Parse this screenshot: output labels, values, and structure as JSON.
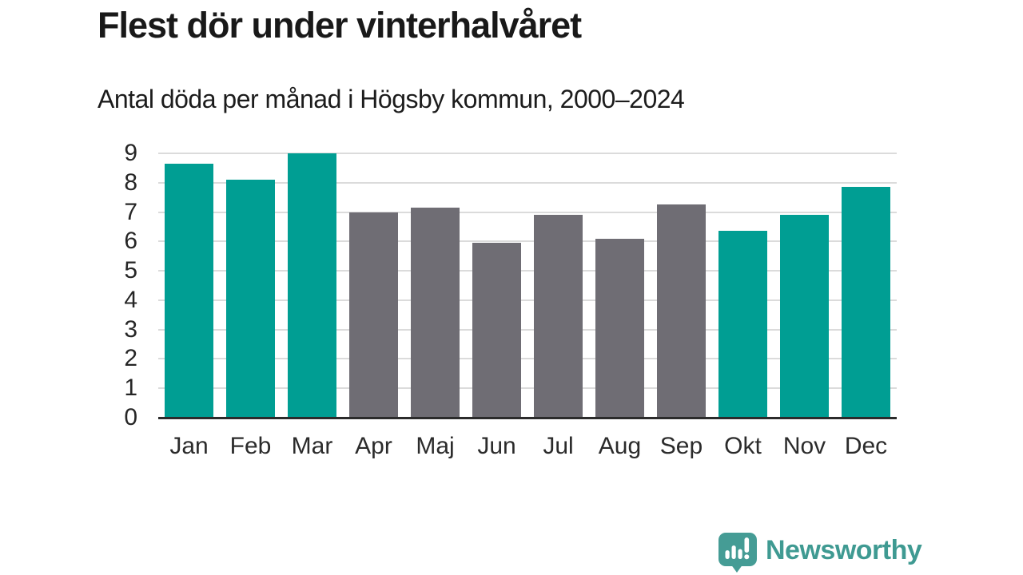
{
  "header": {
    "title": "Flest dör under vinterhalvåret",
    "subtitle": "Antal döda per månad i Högsby kommun, 2000–2024"
  },
  "chart_data": {
    "type": "bar",
    "title": "Flest dör under vinterhalvåret",
    "subtitle": "Antal döda per månad i Högsby kommun, 2000–2024",
    "categories": [
      "Jan",
      "Feb",
      "Mar",
      "Apr",
      "Maj",
      "Jun",
      "Jul",
      "Aug",
      "Sep",
      "Okt",
      "Nov",
      "Dec"
    ],
    "values": [
      8.65,
      8.1,
      9.0,
      7.0,
      7.15,
      5.95,
      6.9,
      6.1,
      7.25,
      6.35,
      6.9,
      7.85
    ],
    "bar_colors": [
      "teal",
      "teal",
      "teal",
      "gray",
      "gray",
      "gray",
      "gray",
      "gray",
      "gray",
      "teal",
      "teal",
      "teal"
    ],
    "palette": {
      "teal": "#009e93",
      "gray": "#6f6d74"
    },
    "xlabel": "",
    "ylabel": "",
    "ylim": [
      0,
      9
    ],
    "yticks": [
      0,
      1,
      2,
      3,
      4,
      5,
      6,
      7,
      8,
      9
    ],
    "grid": "horizontal",
    "legend": "none",
    "axis_line_color": "#2b2b2b",
    "grid_color": "#dbdbdb"
  },
  "branding": {
    "logo_text": "Newsworthy",
    "logo_color": "#3f9a92",
    "logo_icon": "speech-bubble-bar-chart-exclamation"
  }
}
